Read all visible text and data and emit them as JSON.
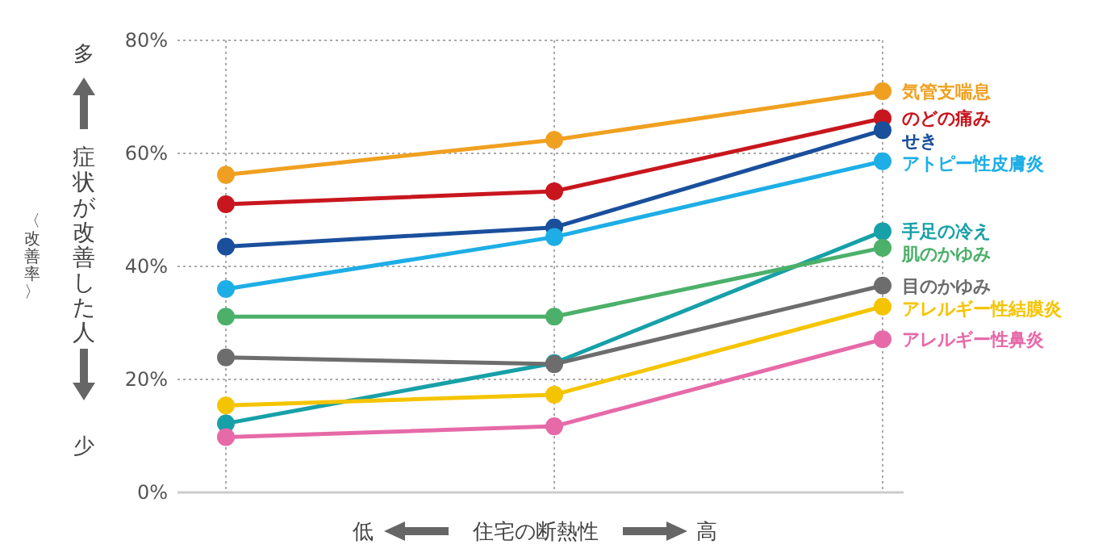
{
  "chart_data": {
    "type": "line",
    "xlabel": "住宅の断熱性",
    "ylabel": "症状が改善した人",
    "categories": [
      null,
      null,
      null
    ],
    "ylim": [
      0,
      80
    ],
    "yticks": [
      {
        "value": 0,
        "label": "0%"
      },
      {
        "value": 20,
        "label": "20%"
      },
      {
        "value": 40,
        "label": "40%"
      },
      {
        "value": 60,
        "label": "60%"
      },
      {
        "value": 80,
        "label": "80%"
      }
    ],
    "grid": true,
    "marker": "circle",
    "annotations": [
      "〈改善率〉",
      "多",
      "少",
      "低",
      "高"
    ],
    "series": [
      {
        "name": "気管支喘息",
        "color": "#f0a020",
        "values": [
          56.2,
          62.4,
          71.0
        ]
      },
      {
        "name": "のどの痛み",
        "color": "#c8161e",
        "values": [
          51.0,
          53.3,
          66.2
        ]
      },
      {
        "name": "せき",
        "color": "#1a4f9c",
        "values": [
          43.5,
          46.9,
          64.1
        ]
      },
      {
        "name": "アトピー性皮膚炎",
        "color": "#1eaee6",
        "values": [
          36.0,
          45.2,
          58.6
        ]
      },
      {
        "name": "手足の冷え",
        "color": "#17a0a8",
        "values": [
          12.2,
          22.9,
          46.2
        ]
      },
      {
        "name": "肌のかゆみ",
        "color": "#4cb06a",
        "values": [
          31.1,
          31.1,
          43.3
        ]
      },
      {
        "name": "目のかゆみ",
        "color": "#6d6d6d",
        "values": [
          23.9,
          22.7,
          36.6
        ]
      },
      {
        "name": "アレルギー性結膜炎",
        "color": "#f5c400",
        "values": [
          15.4,
          17.3,
          32.9
        ]
      },
      {
        "name": "アレルギー性鼻炎",
        "color": "#e66aa8",
        "values": [
          9.8,
          11.7,
          27.1
        ]
      }
    ]
  }
}
